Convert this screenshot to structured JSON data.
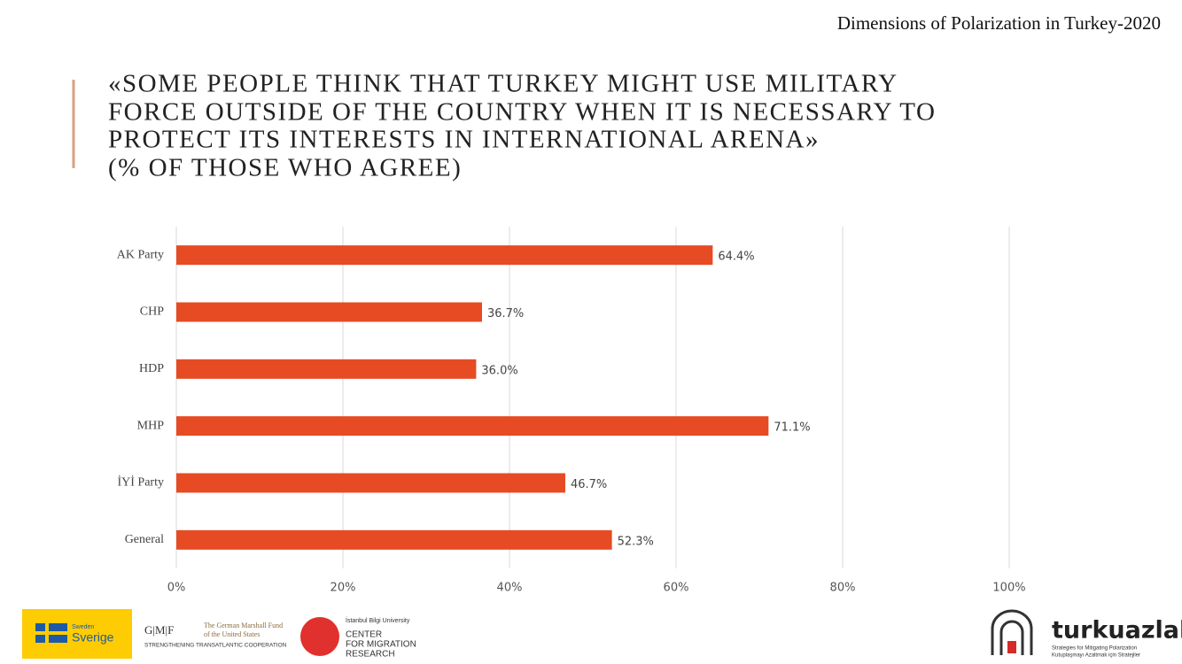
{
  "header": "Dimensions of Polarization in Turkey-2020",
  "chart_data": {
    "type": "bar",
    "orientation": "horizontal",
    "title": [
      "«SOME PEOPLE THINK THAT TURKEY MIGHT USE MILITARY",
      "FORCE OUTSIDE OF THE COUNTRY WHEN IT IS NECESSARY TO",
      "PROTECT ITS INTERESTS IN INTERNATIONAL ARENA»"
    ],
    "subtitle": "(% OF THOSE WHO AGREE)",
    "categories": [
      "AK Party",
      "CHP",
      "HDP",
      "MHP",
      "İYİ Party",
      "General"
    ],
    "values": [
      64.4,
      36.7,
      36.0,
      71.1,
      46.7,
      52.3
    ],
    "value_labels": [
      "64.4%",
      "36.7%",
      "36.0%",
      "71.1%",
      "46.7%",
      "52.3%"
    ],
    "color": "#e64b24",
    "xlim": [
      0,
      100
    ],
    "xticks": [
      {
        "value": 0,
        "label": "0%"
      },
      {
        "value": 20,
        "label": "20%"
      },
      {
        "value": 40,
        "label": "40%"
      },
      {
        "value": 60,
        "label": "60%"
      },
      {
        "value": 80,
        "label": "80%"
      },
      {
        "value": 100,
        "label": "100%"
      }
    ],
    "grid": true
  },
  "logos": {
    "sweden": [
      "Sweden",
      "Sverige"
    ],
    "gmf": [
      "G|M|F",
      "The German Marshall Fund",
      "of the United States",
      "STRENGTHENING TRANSATLANTIC COOPERATION"
    ],
    "bilgi": [
      "İstanbul Bilgi University",
      "CENTER",
      "FOR MIGRATION",
      "RESEARCH"
    ],
    "turkuazlab": [
      "turkuazlab",
      "Strategies for Mitigating Polarization",
      "Kutuplaşmayı Azaltmak için Stratejiler"
    ]
  }
}
